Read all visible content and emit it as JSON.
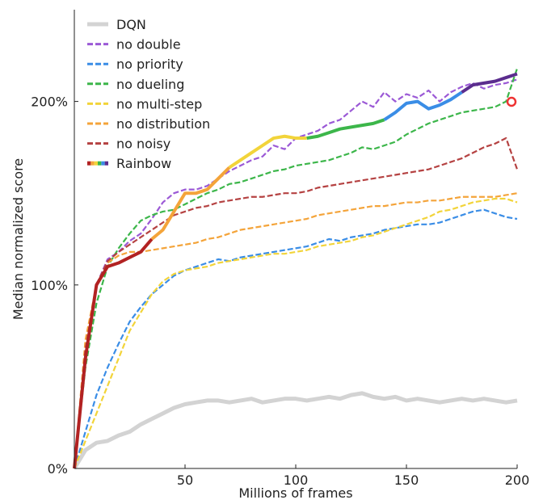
{
  "chart_data": {
    "type": "line",
    "xlabel": "Millions of frames",
    "ylabel": "Median normalized score",
    "xlim": [
      0,
      200
    ],
    "ylim": [
      0,
      250
    ],
    "xticks": [
      50,
      100,
      150,
      200
    ],
    "yticks": [
      0,
      100,
      200
    ],
    "ytick_labels": [
      "0%",
      "100%",
      "200%"
    ],
    "legend_position": "top-left",
    "x": [
      0,
      5,
      10,
      15,
      20,
      25,
      30,
      35,
      40,
      45,
      50,
      55,
      60,
      65,
      70,
      75,
      80,
      85,
      90,
      95,
      100,
      105,
      110,
      115,
      120,
      125,
      130,
      135,
      140,
      145,
      150,
      155,
      160,
      165,
      170,
      175,
      180,
      185,
      190,
      195,
      200
    ],
    "series": [
      {
        "name": "DQN",
        "color": "#d3d3d3",
        "style": "solid",
        "values": [
          0,
          10,
          14,
          15,
          18,
          20,
          24,
          27,
          30,
          33,
          35,
          36,
          37,
          37,
          36,
          37,
          38,
          36,
          37,
          38,
          38,
          37,
          38,
          39,
          38,
          40,
          41,
          39,
          38,
          39,
          37,
          38,
          37,
          36,
          37,
          38,
          37,
          38,
          37,
          36,
          37
        ]
      },
      {
        "name": "no double",
        "color": "#9b59d6",
        "style": "dashed",
        "values": [
          0,
          60,
          100,
          114,
          118,
          124,
          128,
          136,
          145,
          150,
          152,
          152,
          154,
          158,
          162,
          165,
          168,
          170,
          176,
          174,
          180,
          182,
          184,
          188,
          190,
          195,
          200,
          197,
          205,
          200,
          204,
          202,
          206,
          200,
          205,
          208,
          210,
          207,
          209,
          210,
          212
        ]
      },
      {
        "name": "no priority",
        "color": "#3a8de6",
        "style": "dashed",
        "values": [
          0,
          20,
          40,
          55,
          68,
          80,
          88,
          95,
          100,
          105,
          108,
          110,
          112,
          114,
          113,
          115,
          116,
          117,
          118,
          119,
          120,
          121,
          123,
          125,
          124,
          126,
          127,
          128,
          130,
          131,
          132,
          133,
          133,
          134,
          136,
          138,
          140,
          141,
          139,
          137,
          136
        ]
      },
      {
        "name": "no dueling",
        "color": "#3cb64a",
        "style": "dashed",
        "values": [
          0,
          55,
          90,
          110,
          120,
          128,
          135,
          138,
          140,
          141,
          144,
          147,
          150,
          152,
          155,
          156,
          158,
          160,
          162,
          163,
          165,
          166,
          167,
          168,
          170,
          172,
          175,
          174,
          176,
          178,
          182,
          185,
          188,
          190,
          192,
          194,
          195,
          196,
          197,
          200,
          218
        ]
      },
      {
        "name": "no multi-step",
        "color": "#f2d43a",
        "style": "dashed",
        "values": [
          0,
          15,
          30,
          45,
          60,
          75,
          85,
          95,
          102,
          106,
          108,
          109,
          110,
          112,
          113,
          114,
          115,
          116,
          117,
          117,
          118,
          119,
          121,
          122,
          123,
          124,
          126,
          127,
          129,
          131,
          133,
          135,
          137,
          140,
          141,
          143,
          145,
          146,
          147,
          147,
          145
        ]
      },
      {
        "name": "no distribution",
        "color": "#f4a43a",
        "style": "dashed",
        "values": [
          0,
          70,
          100,
          112,
          116,
          118,
          118,
          119,
          120,
          121,
          122,
          123,
          125,
          126,
          128,
          130,
          131,
          132,
          133,
          134,
          135,
          136,
          138,
          139,
          140,
          141,
          142,
          143,
          143,
          144,
          145,
          145,
          146,
          146,
          147,
          148,
          148,
          148,
          148,
          149,
          150
        ]
      },
      {
        "name": "no noisy",
        "color": "#b54242",
        "style": "dashed",
        "values": [
          0,
          65,
          100,
          113,
          118,
          122,
          126,
          130,
          134,
          138,
          140,
          142,
          143,
          145,
          146,
          147,
          148,
          148,
          149,
          150,
          150,
          151,
          153,
          154,
          155,
          156,
          157,
          158,
          159,
          160,
          161,
          162,
          163,
          165,
          167,
          169,
          172,
          175,
          177,
          180,
          163
        ]
      },
      {
        "name": "Rainbow",
        "color": "#5b2d8e",
        "style": "solid",
        "colors": [
          "#b22222",
          "#f4a43a",
          "#f2d43a",
          "#3cb64a",
          "#3a8de6",
          "#5b2d8e"
        ],
        "values": [
          0,
          60,
          100,
          110,
          112,
          115,
          118,
          125,
          130,
          140,
          150,
          150,
          152,
          158,
          164,
          168,
          172,
          176,
          180,
          181,
          180,
          180,
          181,
          183,
          185,
          186,
          187,
          188,
          190,
          194,
          199,
          200,
          196,
          198,
          201,
          205,
          209,
          210,
          211,
          213,
          215
        ]
      }
    ]
  }
}
